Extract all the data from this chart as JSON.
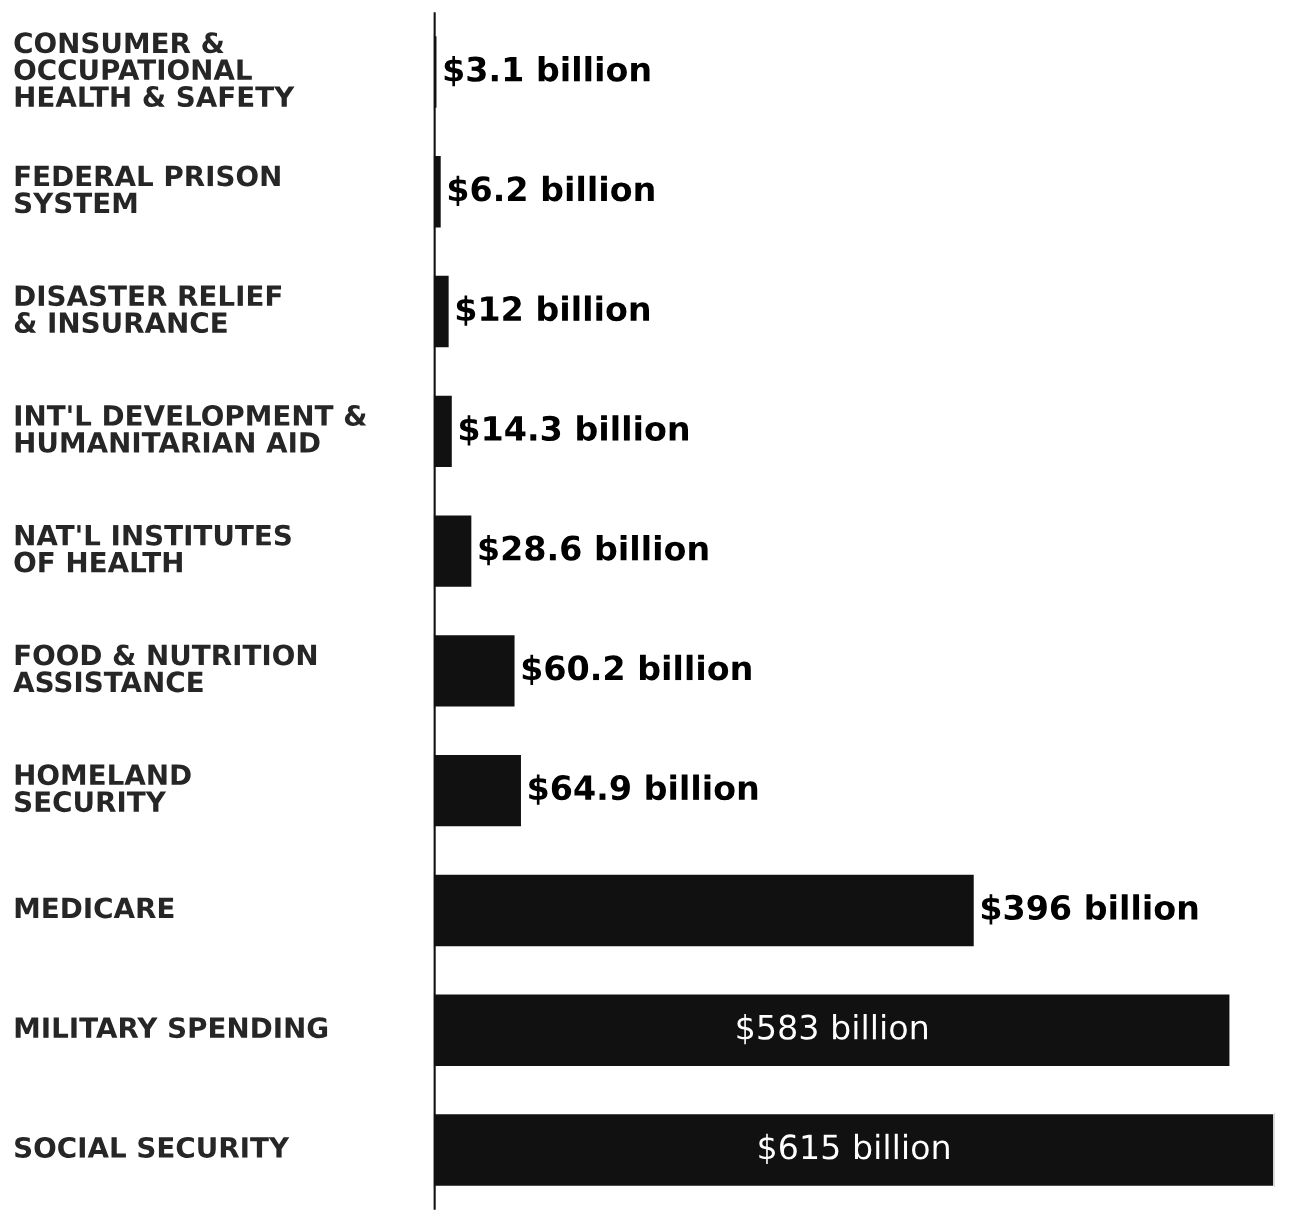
{
  "chart_data": {
    "type": "bar",
    "orientation": "horizontal",
    "categories": [
      "CONSUMER &\nOCCUPATIONAL\nHEALTH & SAFETY",
      "FEDERAL PRISON\nSYSTEM",
      "DISASTER RELIEF\n& INSURANCE",
      "INT'L DEVELOPMENT &\nHUMANITARIAN AID",
      "NAT'L INSTITUTES\nOF HEALTH",
      "FOOD & NUTRITION\nASSISTANCE",
      "HOMELAND\nSECURITY",
      "MEDICARE",
      "MILITARY SPENDING",
      "SOCIAL SECURITY"
    ],
    "values": [
      3.1,
      6.2,
      12,
      14.3,
      28.6,
      60.2,
      64.9,
      396,
      583,
      615
    ],
    "value_labels": [
      "$3.1 billion",
      "$6.2 billion",
      "$12 billion",
      "$14.3 billion",
      "$28.6 billion",
      "$60.2 billion",
      "$64.9 billion",
      "$396 billion",
      "$583 billion",
      "$615 billion"
    ],
    "color": "#111111"
  }
}
